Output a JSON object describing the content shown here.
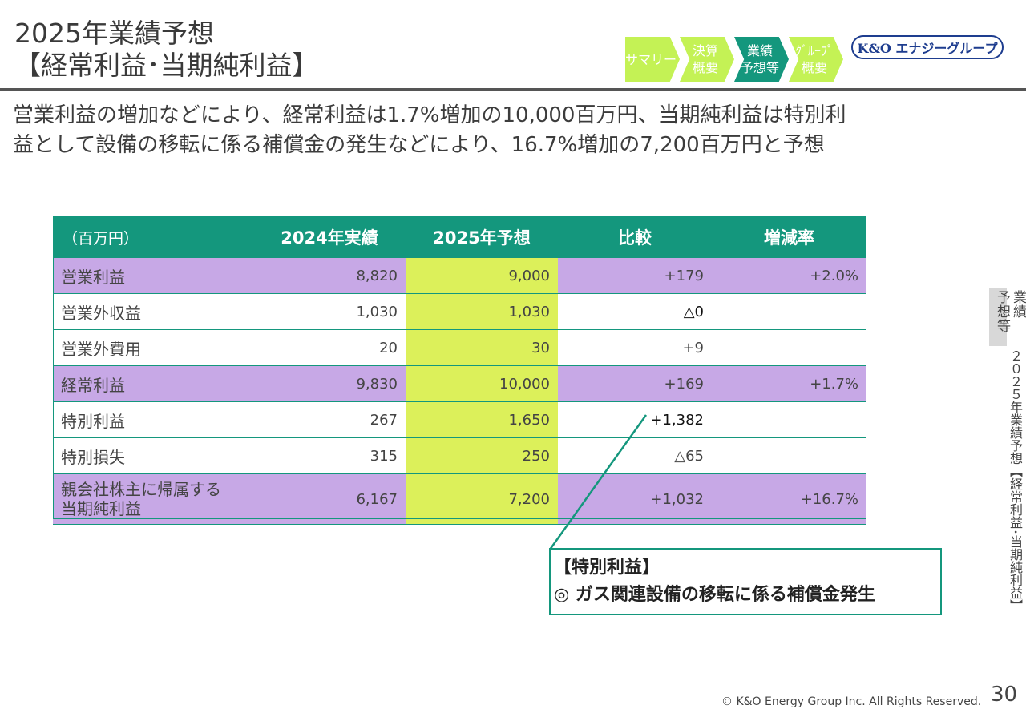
{
  "title": {
    "line1": "2025年業績予想",
    "line2": "【経常利益･当期純利益】"
  },
  "nav": {
    "items": [
      {
        "label": "サマリー",
        "state": "inactive"
      },
      {
        "label": "決算\n概要",
        "state": "inactive"
      },
      {
        "label": "業績\n予想等",
        "state": "active"
      },
      {
        "label": "ｸﾞﾙｰﾌﾟ\n概要",
        "state": "inactive"
      }
    ],
    "colors": {
      "inactive": "#c4f255",
      "active": "#14977d"
    }
  },
  "logo": {
    "text": "K&O エナジーグループ",
    "color": "#1e3d8f"
  },
  "lead": {
    "line1": "営業利益の増加などにより、経常利益は1.7%増加の10,000百万円、当期純利益は特別利",
    "line2": "益として設備の移転に係る補償金の発生などにより、16.7%増加の7,200百万円と予想"
  },
  "table": {
    "headers": [
      "（百万円）",
      "2024年実績",
      "2025年予想",
      "比較",
      "増減率"
    ],
    "rows": [
      {
        "name": "営業利益",
        "y2024": "8,820",
        "y2025": "9,000",
        "diff": "+179",
        "rate": "+2.0%",
        "highlight": true
      },
      {
        "name": "営業外収益",
        "y2024": "1,030",
        "y2025": "1,030",
        "diff": "△0",
        "rate": "",
        "highlight": false
      },
      {
        "name": "営業外費用",
        "y2024": "20",
        "y2025": "30",
        "diff": "+9",
        "rate": "",
        "highlight": false
      },
      {
        "name": "経常利益",
        "y2024": "9,830",
        "y2025": "10,000",
        "diff": "+169",
        "rate": "+1.7%",
        "highlight": true
      },
      {
        "name": "特別利益",
        "y2024": "267",
        "y2025": "1,650",
        "diff": "+1,382",
        "rate": "",
        "highlight": false
      },
      {
        "name": "特別損失",
        "y2024": "315",
        "y2025": "250",
        "diff": "△65",
        "rate": "",
        "highlight": false
      },
      {
        "name_line1": "親会社株主に帰属する",
        "name_line2": "当期純利益",
        "y2024": "6,167",
        "y2025": "7,200",
        "diff": "+1,032",
        "rate": "+16.7%",
        "highlight": true
      }
    ],
    "colors": {
      "header": "#14977d",
      "highlight": "#c7a8e6",
      "forecast": "#dcf05a"
    }
  },
  "callout": {
    "heading": "【特別利益】",
    "body": "◎ ガス関連設備の移転に係る補償金発生"
  },
  "side": {
    "tab": "業績予想等",
    "tab_col1": "業績",
    "tab_col2": "予想等",
    "section": "２０２５年業績予想【経常利益･当期純利益】"
  },
  "footer": {
    "copyright": "© K&O Energy Group Inc. All Rights Reserved.",
    "page": "30"
  }
}
